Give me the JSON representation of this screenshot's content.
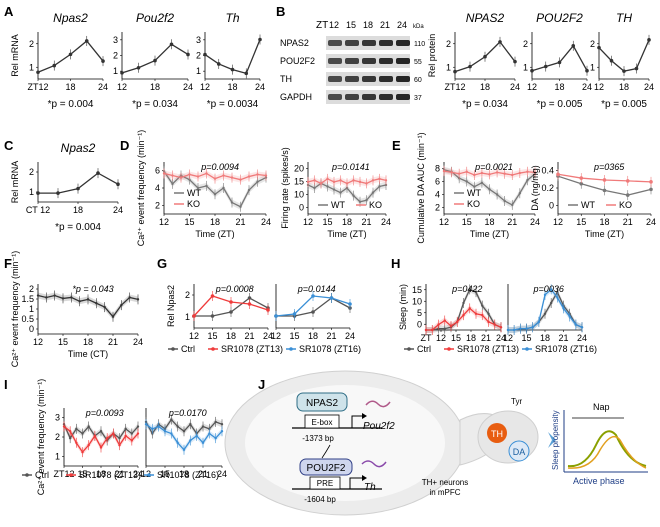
{
  "figure": {
    "panels": [
      {
        "id": "A",
        "label": "A"
      },
      {
        "id": "B",
        "label": "B"
      },
      {
        "id": "C",
        "label": "C"
      },
      {
        "id": "D",
        "label": "D"
      },
      {
        "id": "E",
        "label": "E"
      },
      {
        "id": "F",
        "label": "F"
      },
      {
        "id": "G",
        "label": "G"
      },
      {
        "id": "H",
        "label": "H"
      },
      {
        "id": "I",
        "label": "I"
      },
      {
        "id": "J",
        "label": "J"
      }
    ],
    "colors": {
      "ctrl": "#555555",
      "wt": "#777777",
      "ko": "#f07a7a",
      "sr13": "#ef3b3b",
      "sr16": "#3a8fd6",
      "th": "#e85d10",
      "da": "#3a8fd6",
      "curve": "#8aa000"
    }
  },
  "chart_data": [
    {
      "id": "A1",
      "type": "line",
      "title": "Npas2",
      "ylabel": "Rel mRNA",
      "x": [
        12,
        15,
        18,
        21,
        24
      ],
      "values": [
        1.0,
        1.3,
        1.8,
        2.4,
        1.5
      ],
      "xticks": [
        "ZT12",
        "18",
        "24"
      ],
      "yticks": [
        "1",
        "2"
      ],
      "ylim": [
        0.7,
        2.8
      ],
      "pvalue": "*p = 0.004"
    },
    {
      "id": "A2",
      "type": "line",
      "title": "Pou2f2",
      "x": [
        12,
        15,
        18,
        21,
        24
      ],
      "values": [
        1.0,
        1.25,
        1.6,
        2.4,
        1.9
      ],
      "xticks": [
        "12",
        "18",
        "24"
      ],
      "yticks": [
        "1",
        "2",
        "3"
      ],
      "ylim": [
        0.7,
        3.0
      ],
      "pvalue": "*p = 0.034"
    },
    {
      "id": "A3",
      "type": "line",
      "title": "Th",
      "x": [
        12,
        15,
        18,
        21,
        24
      ],
      "values": [
        2.0,
        1.5,
        1.2,
        1.0,
        2.8
      ],
      "xticks": [
        "12",
        "18",
        "24"
      ],
      "yticks": [
        "1",
        "2",
        "3"
      ],
      "ylim": [
        0.7,
        3.2
      ],
      "pvalue": "*p = 0.0034"
    },
    {
      "id": "B_blot",
      "type": "table",
      "xlabel": "ZT",
      "columns": [
        "12",
        "15",
        "18",
        "21",
        "24"
      ],
      "unit": "kDa",
      "rows": [
        {
          "name": "NPAS2",
          "kda": "110"
        },
        {
          "name": "POU2F2",
          "kda": "55"
        },
        {
          "name": "TH",
          "kda": "60"
        },
        {
          "name": "GAPDH",
          "kda": "37"
        }
      ]
    },
    {
      "id": "B1",
      "type": "line",
      "title": "NPAS2",
      "ylabel": "Rel protein",
      "x": [
        12,
        15,
        18,
        21,
        24
      ],
      "values": [
        1.0,
        1.2,
        1.6,
        2.2,
        1.4
      ],
      "xticks": [
        "ZT12",
        "18",
        "24"
      ],
      "yticks": [
        "1",
        "2"
      ],
      "ylim": [
        0.7,
        2.6
      ],
      "pvalue": "*p = 0.034"
    },
    {
      "id": "B2",
      "type": "line",
      "title": "POU2F2",
      "x": [
        12,
        15,
        18,
        21,
        24
      ],
      "values": [
        1.0,
        1.15,
        1.3,
        1.9,
        1.0
      ],
      "xticks": [
        "12",
        "18",
        "24"
      ],
      "yticks": [
        "1",
        "2"
      ],
      "ylim": [
        0.7,
        2.4
      ],
      "pvalue": "*p = 0.005"
    },
    {
      "id": "B3",
      "type": "line",
      "title": "TH",
      "x": [
        12,
        15,
        18,
        21,
        24
      ],
      "values": [
        1.8,
        1.3,
        0.9,
        1.0,
        2.1
      ],
      "xticks": [
        "12",
        "18",
        "24"
      ],
      "yticks": [
        "1",
        "2"
      ],
      "ylim": [
        0.6,
        2.4
      ],
      "pvalue": "*p = 0.005"
    },
    {
      "id": "C",
      "type": "line",
      "title": "Npas2",
      "ylabel": "Rel mRNA",
      "x": [
        12,
        15,
        18,
        21,
        24
      ],
      "values": [
        1.0,
        1.0,
        1.2,
        1.9,
        1.4
      ],
      "xticks": [
        "CT 12",
        "18",
        "24"
      ],
      "yticks": [
        "1",
        "2"
      ],
      "ylim": [
        0.6,
        2.4
      ],
      "pvalue": "*p = 0.004"
    },
    {
      "id": "D1",
      "type": "line",
      "ylabel": "Ca²⁺ event frequency (min⁻¹)",
      "xlabel": "Time (ZT)",
      "xticks": [
        "12",
        "15",
        "18",
        "21",
        "24"
      ],
      "yticks": [
        "2",
        "4",
        "6"
      ],
      "ylim": [
        1.5,
        6.5
      ],
      "xlim": [
        12,
        24
      ],
      "pvalue": "p=0.0094",
      "legend": [
        "WT",
        "KO"
      ],
      "series": [
        {
          "name": "WT",
          "x": [
            12,
            13,
            14,
            15,
            16,
            17,
            18,
            19,
            20,
            21,
            22,
            23,
            24
          ],
          "values": [
            5.6,
            4.4,
            5.2,
            4.8,
            4.0,
            4.2,
            3.4,
            4.0,
            2.6,
            2.2,
            3.8,
            4.6,
            5.0
          ]
        },
        {
          "name": "KO",
          "x": [
            12,
            13,
            14,
            15,
            16,
            17,
            18,
            19,
            20,
            21,
            22,
            23,
            24
          ],
          "values": [
            5.4,
            5.2,
            5.0,
            5.3,
            5.1,
            5.4,
            4.9,
            5.2,
            5.0,
            4.8,
            5.1,
            5.3,
            5.2
          ]
        }
      ]
    },
    {
      "id": "D2",
      "type": "line",
      "ylabel": "Firing rate (spikes/s)",
      "xlabel": "Time (ZT)",
      "xticks": [
        "12",
        "15",
        "18",
        "21",
        "24"
      ],
      "yticks": [
        "0",
        "10",
        "15",
        "20"
      ],
      "ylim": [
        5,
        22
      ],
      "xlim": [
        12,
        24
      ],
      "pvalue": "p=0.0141",
      "legend": [
        "WT",
        "KO"
      ],
      "series": [
        {
          "name": "WT",
          "x": [
            12,
            13,
            14,
            15,
            16,
            17,
            18,
            19,
            20,
            21,
            22,
            23,
            24
          ],
          "values": [
            14.5,
            13.5,
            15.0,
            14.0,
            13.0,
            12.0,
            13.5,
            11.0,
            9.0,
            9.5,
            12.0,
            14.0,
            14.5
          ]
        },
        {
          "name": "KO",
          "x": [
            12,
            13,
            14,
            15,
            16,
            17,
            18,
            19,
            20,
            21,
            22,
            23,
            24
          ],
          "values": [
            15.5,
            16.0,
            15.0,
            16.5,
            15.5,
            16.0,
            15.0,
            16.0,
            15.5,
            15.0,
            16.0,
            16.5,
            16.0
          ]
        }
      ]
    },
    {
      "id": "E1",
      "type": "line",
      "ylabel": "Cumulative DA AUC (min⁻¹)",
      "xlabel": "Time (ZT)",
      "xticks": [
        "12",
        "15",
        "18",
        "21",
        "24"
      ],
      "yticks": [
        "2",
        "4",
        "6",
        "8"
      ],
      "ylim": [
        1,
        9
      ],
      "xlim": [
        12,
        24
      ],
      "pvalue": "p=0.0021",
      "legend": [
        "WT",
        "KO"
      ],
      "series": [
        {
          "name": "WT",
          "x": [
            12,
            13,
            14,
            15,
            16,
            17,
            18,
            19,
            20,
            21,
            22,
            23,
            24
          ],
          "values": [
            7.8,
            7.5,
            6.5,
            6.0,
            5.2,
            5.8,
            4.8,
            4.0,
            3.0,
            2.4,
            4.2,
            6.2,
            7.2
          ]
        },
        {
          "name": "KO",
          "x": [
            12,
            13,
            14,
            15,
            16,
            17,
            18,
            19,
            20,
            21,
            22,
            23,
            24
          ],
          "values": [
            7.6,
            7.4,
            7.2,
            7.5,
            7.0,
            7.3,
            7.1,
            7.4,
            7.2,
            7.0,
            7.3,
            7.5,
            7.4
          ]
        }
      ]
    },
    {
      "id": "E2",
      "type": "line",
      "ylabel": "DA (ng/mg)",
      "xlabel": "Time (ZT)",
      "xticks": [
        "12",
        "15",
        "18",
        "21",
        "24"
      ],
      "yticks": [
        "0",
        "0.2",
        "0.4"
      ],
      "ylim": [
        0,
        0.55
      ],
      "xlim": [
        12,
        24
      ],
      "pvalue": "p=0365",
      "legend": [
        "WT",
        "KO"
      ],
      "series": [
        {
          "name": "WT",
          "x": [
            12,
            15,
            18,
            21,
            24
          ],
          "values": [
            0.4,
            0.32,
            0.25,
            0.2,
            0.26
          ]
        },
        {
          "name": "KO",
          "x": [
            12,
            15,
            18,
            21,
            24
          ],
          "values": [
            0.42,
            0.38,
            0.36,
            0.35,
            0.34
          ]
        }
      ]
    },
    {
      "id": "F",
      "type": "line",
      "ylabel": "Ca²⁺ event frequency (min⁻¹)",
      "xlabel": "Time (CT)",
      "xticks": [
        "12",
        "15",
        "18",
        "21",
        "24"
      ],
      "yticks": [
        "0",
        "0.5",
        "1",
        "1.5",
        "2"
      ],
      "ylim": [
        0,
        2.6
      ],
      "xlim": [
        12,
        24
      ],
      "pvalue": "*p = 0.043",
      "series": [
        {
          "name": "",
          "x": [
            12,
            13,
            14,
            15,
            16,
            17,
            18,
            19,
            20,
            21,
            22,
            23,
            24
          ],
          "values": [
            2.0,
            1.9,
            2.0,
            1.85,
            1.9,
            1.7,
            1.8,
            1.6,
            1.4,
            0.9,
            1.5,
            1.9,
            1.8
          ]
        }
      ]
    },
    {
      "id": "G1",
      "type": "line",
      "ylabel": "Rel Npas2",
      "xticks": [
        "12",
        "15",
        "18",
        "21",
        "24"
      ],
      "yticks": [
        "1",
        "2"
      ],
      "ylim": [
        0.4,
        2.6
      ],
      "xlim": [
        12,
        24
      ],
      "pvalue": "p=0.0008",
      "series": [
        {
          "name": "Ctrl",
          "x": [
            12,
            15,
            18,
            21,
            24
          ],
          "values": [
            1.0,
            1.0,
            1.2,
            1.9,
            1.4
          ]
        },
        {
          "name": "SR1078 (ZT13)",
          "x": [
            12,
            15,
            18,
            21,
            24
          ],
          "values": [
            1.0,
            2.0,
            1.7,
            1.6,
            1.3
          ]
        }
      ]
    },
    {
      "id": "G2",
      "type": "line",
      "xticks": [
        "12",
        "15",
        "18",
        "21",
        "24"
      ],
      "yticks": [],
      "ylim": [
        0.4,
        2.6
      ],
      "xlim": [
        12,
        24
      ],
      "pvalue": "p=0.0144",
      "series": [
        {
          "name": "Ctrl",
          "x": [
            12,
            15,
            18,
            21,
            24
          ],
          "values": [
            1.0,
            1.0,
            1.2,
            1.9,
            1.4
          ]
        },
        {
          "name": "SR1078 (ZT16)",
          "x": [
            12,
            15,
            18,
            21,
            24
          ],
          "values": [
            1.0,
            1.1,
            2.0,
            1.9,
            1.6
          ]
        }
      ]
    },
    {
      "id": "H1",
      "type": "line",
      "ylabel": "Sleep (min)",
      "xticks": [
        "ZT",
        "12",
        "15",
        "18",
        "21",
        "24"
      ],
      "yticks": [
        "0",
        "5",
        "10",
        "15"
      ],
      "ylim": [
        0,
        17
      ],
      "xlim": [
        12,
        24
      ],
      "pvalue": "p=0422",
      "series": [
        {
          "name": "Ctrl",
          "x": [
            12,
            13,
            14,
            15,
            16,
            17,
            18,
            19,
            20,
            21,
            22,
            23,
            24
          ],
          "values": [
            0,
            0,
            0.5,
            0.5,
            1,
            3,
            10,
            15,
            14,
            9,
            6,
            2,
            1
          ]
        },
        {
          "name": "SR1078 (ZT13)",
          "x": [
            12,
            13,
            14,
            15,
            16,
            17,
            18,
            19,
            20,
            21,
            22,
            23,
            24
          ],
          "values": [
            0,
            0,
            2,
            3.5,
            1.5,
            3,
            5.5,
            8,
            6,
            5.5,
            3,
            2,
            1
          ]
        }
      ]
    },
    {
      "id": "H2",
      "type": "line",
      "xticks": [
        "12",
        "15",
        "18",
        "21",
        "24"
      ],
      "yticks": [],
      "ylim": [
        0,
        17
      ],
      "xlim": [
        12,
        24
      ],
      "pvalue": "p=0036",
      "series": [
        {
          "name": "Ctrl",
          "x": [
            12,
            13,
            14,
            15,
            16,
            17,
            18,
            19,
            20,
            21,
            22,
            23,
            24
          ],
          "values": [
            0,
            0,
            0.5,
            0.5,
            1,
            3,
            6,
            10,
            14,
            9,
            6,
            2,
            1
          ]
        },
        {
          "name": "SR1078 (ZT16)",
          "x": [
            12,
            13,
            14,
            15,
            16,
            17,
            18,
            19,
            20,
            21,
            22,
            23,
            24
          ],
          "values": [
            0,
            0,
            0.5,
            0.5,
            1,
            3,
            13,
            15,
            12,
            8,
            5,
            2,
            1
          ]
        }
      ]
    },
    {
      "id": "I1",
      "type": "line",
      "ylabel": "Ca²⁺ event frequency (min⁻¹)",
      "xticks": [
        "ZT12",
        "15",
        "18",
        "21",
        "24"
      ],
      "yticks": [
        "1",
        "2",
        "3"
      ],
      "ylim": [
        0.6,
        3.1
      ],
      "xlim": [
        12,
        24
      ],
      "pvalue": "p=0.0093",
      "series": [
        {
          "name": "Ctrl",
          "x": [
            12,
            13,
            14,
            15,
            16,
            17,
            18,
            19,
            20,
            21,
            22,
            23,
            24
          ],
          "values": [
            2.4,
            1.8,
            2.2,
            2.0,
            2.3,
            1.9,
            2.1,
            1.7,
            2.0,
            1.8,
            2.2,
            2.0,
            2.3
          ]
        },
        {
          "name": "SR1078 (ZT13)",
          "x": [
            12,
            13,
            14,
            15,
            16,
            17,
            18,
            19,
            20,
            21,
            22,
            23,
            24
          ],
          "values": [
            2.3,
            2.1,
            1.6,
            1.2,
            1.5,
            1.9,
            1.4,
            1.8,
            2.0,
            1.5,
            1.9,
            1.7,
            2.0
          ]
        }
      ]
    },
    {
      "id": "I2",
      "type": "line",
      "xticks": [
        "12",
        "15",
        "18",
        "21",
        "24"
      ],
      "yticks": [],
      "ylim": [
        0.6,
        3.1
      ],
      "xlim": [
        12,
        24
      ],
      "pvalue": "p=0.0170",
      "series": [
        {
          "name": "Ctrl",
          "x": [
            12,
            13,
            14,
            15,
            16,
            17,
            18,
            19,
            20,
            21,
            22,
            23,
            24
          ],
          "values": [
            2.5,
            2.0,
            2.4,
            2.2,
            2.6,
            2.3,
            2.1,
            2.4,
            2.0,
            2.3,
            2.2,
            2.5,
            2.4
          ]
        },
        {
          "name": "SR1078 (ZT16)",
          "x": [
            12,
            13,
            14,
            15,
            16,
            17,
            18,
            19,
            20,
            21,
            22,
            23,
            24
          ],
          "values": [
            2.4,
            2.2,
            2.3,
            2.1,
            2.0,
            1.6,
            1.3,
            1.7,
            1.9,
            1.6,
            2.0,
            1.8,
            2.1
          ]
        }
      ]
    }
  ],
  "legends": {
    "G": [
      "Ctrl",
      "SR1078 (ZT13)",
      "SR1078 (ZT16)"
    ],
    "H": [
      "Ctrl",
      "SR1078 (ZT13)",
      "SR1078 (ZT16)"
    ],
    "I": [
      "Ctrl",
      "SR1078 (ZT13)",
      "SR1078 (ZT16)"
    ]
  },
  "diagram": {
    "npas2": "NPAS2",
    "ebox": "E-box",
    "ebox_bp": "-1373 bp",
    "pou2f2_gene": "Pou2f2",
    "pou2f2_protein": "POU2F2",
    "pre": "PRE",
    "pre_bp": "-1604 bp",
    "th_gene": "Th",
    "tyr": "Tyr",
    "th": "TH",
    "da": "DA",
    "neurons": "TH+ neurons",
    "region": "in mPFC",
    "nap": "Nap",
    "sleep_propensity": "Sleep propensity",
    "active_phase": "Active phase"
  }
}
